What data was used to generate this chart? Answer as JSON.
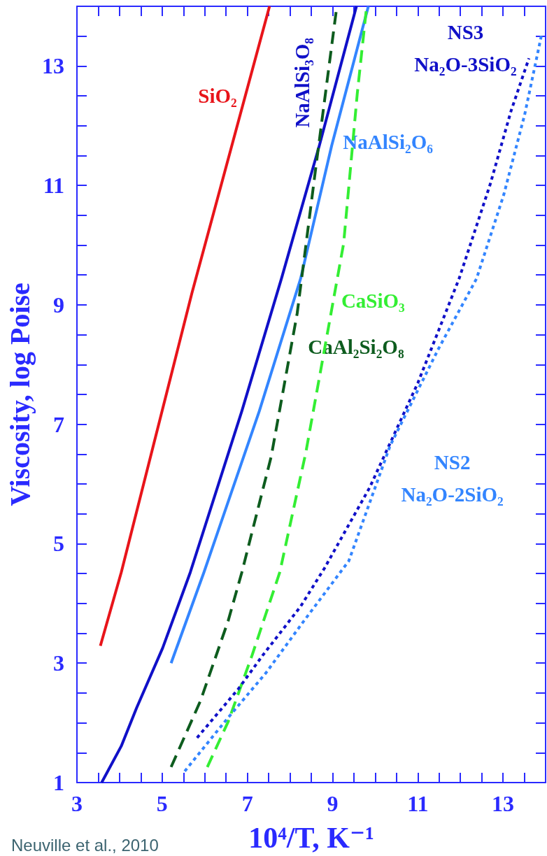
{
  "chart_data": {
    "type": "line",
    "xlabel": "10⁴/T, K⁻¹",
    "ylabel": "Viscosity, log Poise",
    "xlim": [
      3,
      14
    ],
    "xticks": [
      3,
      5,
      7,
      9,
      11,
      13
    ],
    "ylim": [
      1,
      14
    ],
    "yticks": [
      1,
      3,
      5,
      7,
      9,
      11,
      13
    ],
    "grid": false,
    "legend": false,
    "marker": "none",
    "annotations": [
      "Neuville et al., 2010"
    ],
    "series": [
      {
        "name": "SiO₂",
        "color": "#e8141a",
        "line_style": "solid",
        "x": [
          3.55,
          4.04,
          5.7,
          7.52
        ],
        "values": [
          3.29,
          4.52,
          9.2,
          14
        ]
      },
      {
        "name": "NaAlSi₃O₈",
        "color": "#1010c8",
        "line_style": "solid",
        "x": [
          3.58,
          4.04,
          4.4,
          5.01,
          5.66,
          6.87,
          7.8,
          8.69,
          9.56
        ],
        "values": [
          1,
          1.61,
          2.25,
          3.25,
          4.52,
          7.22,
          9.44,
          11.67,
          14
        ]
      },
      {
        "name": "NaAlSi₂O₆",
        "color": "#3385ff",
        "line_style": "solid",
        "x": [
          5.21,
          5.98,
          7.28,
          8.25,
          8.98,
          9.84
        ],
        "values": [
          3,
          4.52,
          7.22,
          9.44,
          11.67,
          14
        ]
      },
      {
        "name": "CaSiO₃",
        "color": "#33ee33",
        "line_style": "dashed",
        "x": [
          6.06,
          6.55,
          7.11,
          7.76,
          8.37,
          8.89,
          9.26,
          9.58,
          9.8
        ],
        "values": [
          1.26,
          2.02,
          3.13,
          4.52,
          6.52,
          8.57,
          10.03,
          12.54,
          14
        ]
      },
      {
        "name": "CaAl₂Si₂O₈",
        "color": "#0d5c1e",
        "line_style": "dashed",
        "x": [
          5.21,
          5.9,
          6.55,
          6.87,
          7.56,
          8.17,
          8.61,
          9.1
        ],
        "values": [
          1.26,
          2.37,
          3.71,
          4.52,
          6.46,
          8.86,
          11.32,
          14
        ]
      },
      {
        "name": "NS3\nNa₂O-3SiO₂",
        "color": "#1010c8",
        "line_style": "dotted",
        "x": [
          5.82,
          6.79,
          7.36,
          8.25,
          8.81,
          9.87,
          11.0,
          11.97,
          12.7,
          13.19,
          13.61
        ],
        "values": [
          1.75,
          2.57,
          3.13,
          3.95,
          4.59,
          5.94,
          7.69,
          9.44,
          11.02,
          12.25,
          13.13
        ]
      },
      {
        "name": "NS2\nNa₂O-2SiO₂",
        "color": "#3385ff",
        "line_style": "dotted",
        "x": [
          5.53,
          6.47,
          7.44,
          8.33,
          9.38,
          10.35,
          11.49,
          12.38,
          13.02,
          13.51,
          13.91
        ],
        "values": [
          1.19,
          2.02,
          2.84,
          3.71,
          4.71,
          6.64,
          8.27,
          9.44,
          10.85,
          12.19,
          13.54
        ]
      }
    ]
  }
}
